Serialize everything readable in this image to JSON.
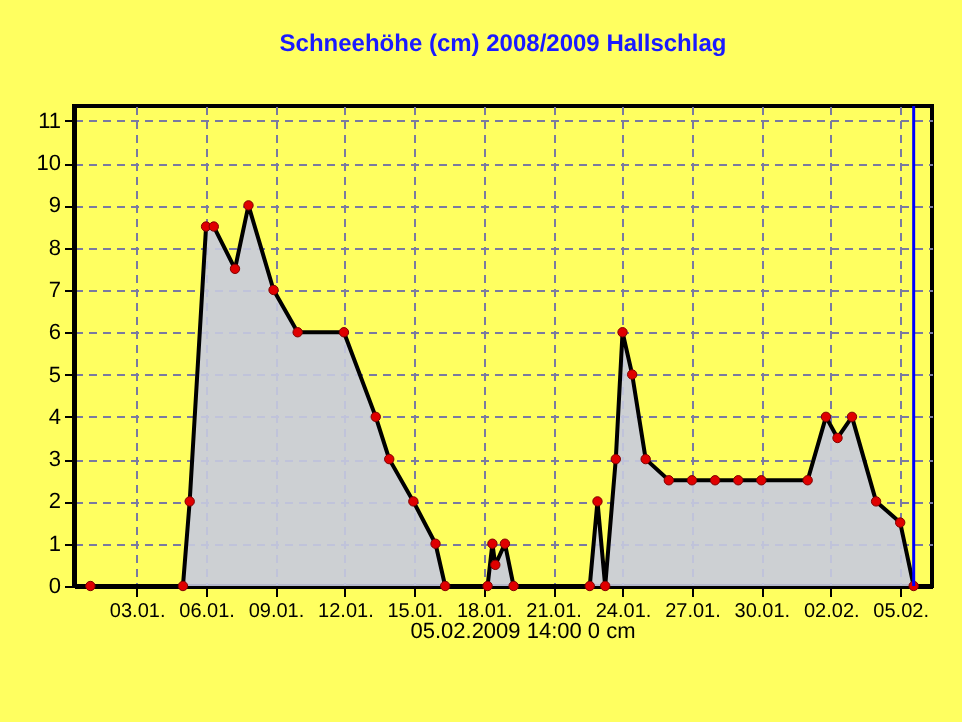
{
  "chart_data": {
    "type": "area",
    "title": "Schneehöhe (cm)  2008/2009      Hallschlag",
    "x": [
      "2009-01-01T00:00",
      "2009-01-05T00:00",
      "2009-01-05T07:00",
      "2009-01-06T00:00",
      "2009-01-06T08:00",
      "2009-01-07T06:00",
      "2009-01-07T20:00",
      "2009-01-08T22:00",
      "2009-01-09T23:00",
      "2009-01-11T23:00",
      "2009-01-13T08:00",
      "2009-01-13T22:00",
      "2009-01-14T23:00",
      "2009-01-15T22:00",
      "2009-01-16T08:00",
      "2009-01-18T04:00",
      "2009-01-18T09:00",
      "2009-01-18T12:00",
      "2009-01-18T22:00",
      "2009-01-19T07:00",
      "2009-01-22T14:00",
      "2009-01-22T22:00",
      "2009-01-23T06:00",
      "2009-01-23T17:00",
      "2009-01-24T00:00",
      "2009-01-24T10:00",
      "2009-01-25T00:00",
      "2009-01-26T00:00",
      "2009-01-27T00:00",
      "2009-01-28T00:00",
      "2009-01-29T00:00",
      "2009-01-30T00:00",
      "2009-02-01T00:00",
      "2009-02-01T19:00",
      "2009-02-02T07:00",
      "2009-02-02T22:00",
      "2009-02-03T23:00",
      "2009-02-05T00:00",
      "2009-02-05T14:00"
    ],
    "series": [
      {
        "color": "#c8cbe0",
        "values": [
          0,
          0,
          2,
          8.5,
          8.5,
          7.5,
          9,
          7,
          6,
          6,
          4,
          3,
          2,
          1,
          0,
          0,
          1,
          0.5,
          1,
          0,
          0,
          2,
          0,
          3,
          6,
          5,
          3,
          2.5,
          2.5,
          2.5,
          2.5,
          2.5,
          2.5,
          4,
          3.5,
          4,
          2,
          1.5,
          0
        ]
      }
    ],
    "xlim": [
      "2008-12-31T07:00",
      "2009-02-06T09:00"
    ],
    "xticks": [
      {
        "value": "2009-01-03",
        "label": "03.01."
      },
      {
        "value": "2009-01-06",
        "label": "06.01."
      },
      {
        "value": "2009-01-09",
        "label": "09.01."
      },
      {
        "value": "2009-01-12",
        "label": "12.01."
      },
      {
        "value": "2009-01-15",
        "label": "15.01."
      },
      {
        "value": "2009-01-18",
        "label": "18.01."
      },
      {
        "value": "2009-01-21",
        "label": "21.01."
      },
      {
        "value": "2009-01-24",
        "label": "24.01."
      },
      {
        "value": "2009-01-27",
        "label": "27.01."
      },
      {
        "value": "2009-01-30",
        "label": "30.01."
      },
      {
        "value": "2009-02-02",
        "label": "02.02."
      },
      {
        "value": "2009-02-05",
        "label": "05.02."
      }
    ],
    "ylim": [
      0,
      11.35
    ],
    "yticks": [
      0,
      1,
      2,
      3,
      4,
      5,
      6,
      7,
      8,
      9,
      10,
      11
    ],
    "ref_lines": [
      {
        "axis": "x",
        "value": "2009-02-05T14:00",
        "label": null,
        "color": "#0000ff"
      }
    ],
    "annotations": [
      "05.02.2009  14:00   0 cm"
    ],
    "grid": true,
    "marker": "circle",
    "line_style": "solid"
  }
}
